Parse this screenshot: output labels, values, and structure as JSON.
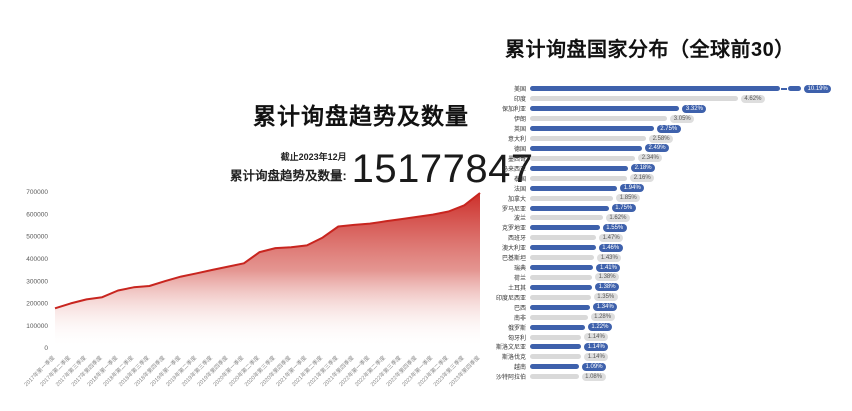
{
  "page": {
    "background": "#ffffff"
  },
  "left_chart": {
    "stat_date_note": "截止2023年12月",
    "stat_label": "累计询盘趋势及数量:",
    "stat_value": "15177847"
  },
  "right_chart_note": "bars alternate blue and gray; first bar shown with axis break",
  "chart_data": [
    {
      "type": "area",
      "title": "累计询盘趋势及数量",
      "xlabel": "",
      "ylabel": "",
      "ylim": [
        0,
        700000
      ],
      "yticks": [
        700000,
        600000,
        500000,
        400000,
        300000,
        200000,
        100000,
        0
      ],
      "grid": false,
      "line_color": "#c8251f",
      "fill_top_color": "#cb2823",
      "fill_bottom_color": "#ffffff",
      "x": [
        "2017年第一季度",
        "2017年第二季度",
        "2017年第三季度",
        "2017年第四季度",
        "2018年第一季度",
        "2018年第二季度",
        "2018年第三季度",
        "2018年第四季度",
        "2019年第一季度",
        "2019年第二季度",
        "2019年第三季度",
        "2019年第四季度",
        "2020年第一季度",
        "2020年第二季度",
        "2020年第三季度",
        "2020年第四季度",
        "2021年第一季度",
        "2021年第二季度",
        "2021年第三季度",
        "2021年第四季度",
        "2022年第一季度",
        "2022年第二季度",
        "2022年第三季度",
        "2022年第四季度",
        "2023年第一季度",
        "2023年第二季度",
        "2023年第三季度",
        "2023年第四季度"
      ],
      "values": [
        178000,
        200000,
        218000,
        228000,
        258000,
        272000,
        278000,
        300000,
        320000,
        335000,
        350000,
        365000,
        380000,
        430000,
        448000,
        452000,
        460000,
        495000,
        545000,
        552000,
        558000,
        568000,
        578000,
        588000,
        598000,
        612000,
        640000,
        695000
      ]
    },
    {
      "type": "bar",
      "orientation": "horizontal",
      "title": "累计询盘国家分布（全球前30）",
      "legend": null,
      "bar_color_odd": "#3e61ac",
      "bar_color_even": "#d9d9d9",
      "badge_text_odd": "#ffffff",
      "badge_bg_even": "#dedede",
      "badge_text_even": "#555555",
      "axis_break_on_first_bar": true,
      "categories": [
        "美国",
        "印度",
        "保加利亚",
        "伊朗",
        "英国",
        "意大利",
        "德国",
        "墨西哥",
        "马来西亚",
        "泰国",
        "法国",
        "加拿大",
        "罗马尼亚",
        "波兰",
        "克罗地亚",
        "西班牙",
        "澳大利亚",
        "巴基斯坦",
        "瑞典",
        "荷兰",
        "土耳其",
        "印度尼西亚",
        "巴西",
        "南非",
        "俄罗斯",
        "匈牙利",
        "斯洛文尼亚",
        "斯洛伐克",
        "越南",
        "沙特阿拉伯"
      ],
      "values": [
        10.19,
        4.62,
        3.32,
        3.05,
        2.75,
        2.58,
        2.49,
        2.34,
        2.18,
        2.16,
        1.94,
        1.85,
        1.75,
        1.62,
        1.55,
        1.47,
        1.46,
        1.43,
        1.41,
        1.38,
        1.38,
        1.35,
        1.34,
        1.28,
        1.22,
        1.14,
        1.14,
        1.14,
        1.09,
        1.08
      ],
      "value_labels": [
        "10.19%",
        "4.62%",
        "3.32%",
        "3.05%",
        "2.75%",
        "2.58%",
        "2.49%",
        "2.34%",
        "2.18%",
        "2.16%",
        "1.94%",
        "1.85%",
        "1.75%",
        "1.62%",
        "1.55%",
        "1.47%",
        "1.46%",
        "1.43%",
        "1.41%",
        "1.38%",
        "1.38%",
        "1.35%",
        "1.34%",
        "1.28%",
        "1.22%",
        "1.14%",
        "1.14%",
        "1.14%",
        "1.09%",
        "1.08%"
      ]
    }
  ]
}
